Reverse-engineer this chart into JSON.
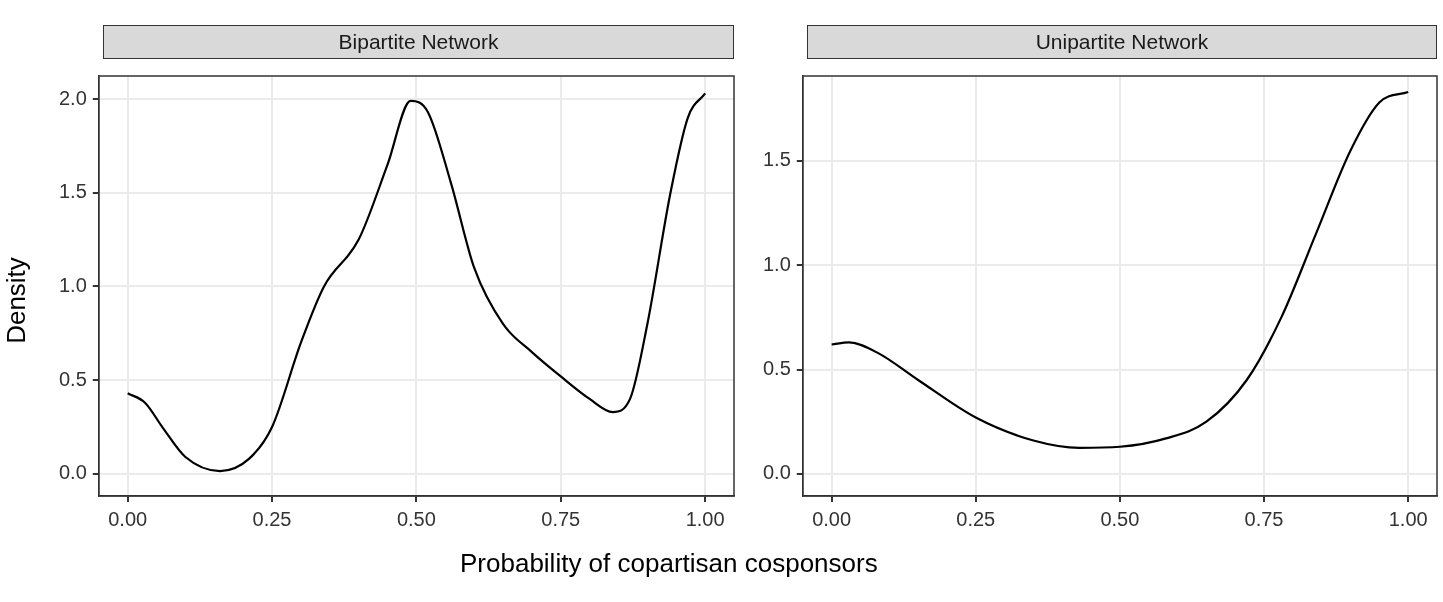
{
  "chart_data": [
    {
      "type": "line",
      "title": "Bipartite Network",
      "ylabel": "Density",
      "xlabel": "Probability of copartisan cosponsors",
      "grid": true,
      "legend": false,
      "marker": "none",
      "line_style": "solid",
      "xlim": [
        -0.05,
        1.05
      ],
      "ylim": [
        -0.118,
        2.123
      ],
      "xticks": [
        {
          "value": 0,
          "label": "0.00"
        },
        {
          "value": 0.25,
          "label": "0.25"
        },
        {
          "value": 0.5,
          "label": "0.50"
        },
        {
          "value": 0.75,
          "label": "0.75"
        },
        {
          "value": 1,
          "label": "1.00"
        }
      ],
      "yticks": [
        {
          "value": 0,
          "label": "0.0"
        },
        {
          "value": 0.5,
          "label": "0.5"
        },
        {
          "value": 1,
          "label": "1.0"
        },
        {
          "value": 1.5,
          "label": "1.5"
        },
        {
          "value": 2,
          "label": "2.0"
        }
      ],
      "series": [
        {
          "color": "#000000",
          "x": [
            0,
            0.03,
            0.06,
            0.1,
            0.16,
            0.21,
            0.25,
            0.3,
            0.34,
            0.4,
            0.45,
            0.49,
            0.52,
            0.56,
            0.6,
            0.65,
            0.7,
            0.75,
            0.8,
            0.84,
            0.87,
            0.9,
            0.94,
            0.97,
            1
          ],
          "values": [
            0.43,
            0.38,
            0.25,
            0.09,
            0.015,
            0.08,
            0.25,
            0.7,
            1.0,
            1.25,
            1.65,
            1.99,
            1.93,
            1.55,
            1.1,
            0.8,
            0.65,
            0.52,
            0.4,
            0.33,
            0.4,
            0.8,
            1.5,
            1.9,
            2.03
          ]
        }
      ]
    },
    {
      "type": "line",
      "title": "Unipartite Network",
      "grid": true,
      "legend": false,
      "marker": "none",
      "line_style": "solid",
      "xlim": [
        -0.05,
        1.05
      ],
      "ylim": [
        -0.106,
        1.907
      ],
      "xticks": [
        {
          "value": 0,
          "label": "0.00"
        },
        {
          "value": 0.25,
          "label": "0.25"
        },
        {
          "value": 0.5,
          "label": "0.50"
        },
        {
          "value": 0.75,
          "label": "0.75"
        },
        {
          "value": 1,
          "label": "1.00"
        }
      ],
      "yticks": [
        {
          "value": 0,
          "label": "0.0"
        },
        {
          "value": 0.5,
          "label": "0.5"
        },
        {
          "value": 1,
          "label": "1.0"
        },
        {
          "value": 1.5,
          "label": "1.5"
        }
      ],
      "series": [
        {
          "color": "#000000",
          "x": [
            0,
            0.03,
            0.08,
            0.15,
            0.25,
            0.35,
            0.43,
            0.5,
            0.58,
            0.65,
            0.72,
            0.78,
            0.84,
            0.9,
            0.95,
            1
          ],
          "values": [
            0.62,
            0.63,
            0.58,
            0.45,
            0.27,
            0.16,
            0.125,
            0.13,
            0.17,
            0.25,
            0.45,
            0.75,
            1.15,
            1.55,
            1.78,
            1.83
          ]
        }
      ]
    }
  ]
}
